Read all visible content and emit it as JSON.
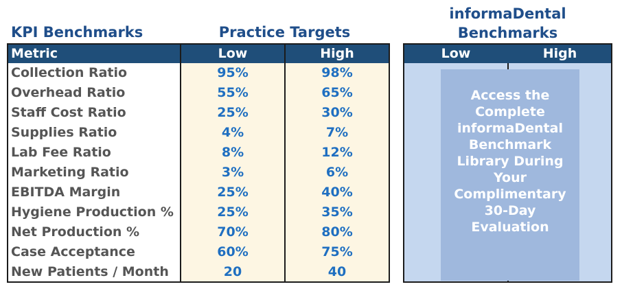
{
  "titles": {
    "kpi": "KPI Benchmarks",
    "practice": "Practice Targets",
    "informadental_line1": "informaDental",
    "informadental_line2": "Benchmarks"
  },
  "left_table": {
    "headers": {
      "metric": "Metric",
      "low": "Low",
      "high": "High"
    },
    "rows": [
      {
        "metric": "Collection Ratio",
        "low": "95%",
        "high": "98%"
      },
      {
        "metric": "Overhead Ratio",
        "low": "55%",
        "high": "65%"
      },
      {
        "metric": "Staff Cost Ratio",
        "low": "25%",
        "high": "30%"
      },
      {
        "metric": "Supplies Ratio",
        "low": "4%",
        "high": "7%"
      },
      {
        "metric": "Lab Fee Ratio",
        "low": "8%",
        "high": "12%"
      },
      {
        "metric": "Marketing Ratio",
        "low": "3%",
        "high": "6%"
      },
      {
        "metric": "EBITDA Margin",
        "low": "25%",
        "high": "40%"
      },
      {
        "metric": "Hygiene Production %",
        "low": "25%",
        "high": "35%"
      },
      {
        "metric": "Net Production %",
        "low": "70%",
        "high": "80%"
      },
      {
        "metric": "Case Acceptance",
        "low": "60%",
        "high": "75%"
      },
      {
        "metric": "New Patients / Month",
        "low": "20",
        "high": "40"
      }
    ]
  },
  "right_table": {
    "headers": {
      "low": "Low",
      "high": "High"
    },
    "promo_lines": [
      "Access the",
      "Complete",
      "informaDental",
      "Benchmark",
      "Library During",
      "Your",
      "Complimentary",
      "30-Day",
      "Evaluation"
    ]
  },
  "colors": {
    "title": "#1f4e8a",
    "header_bg": "#1f4e79",
    "value_text": "#1f6fc1",
    "metric_text": "#555555",
    "left_body_bg": "#fdf6e3",
    "right_body_bg": "#c5d7ef",
    "promo_bg": "#9fb8dd"
  }
}
